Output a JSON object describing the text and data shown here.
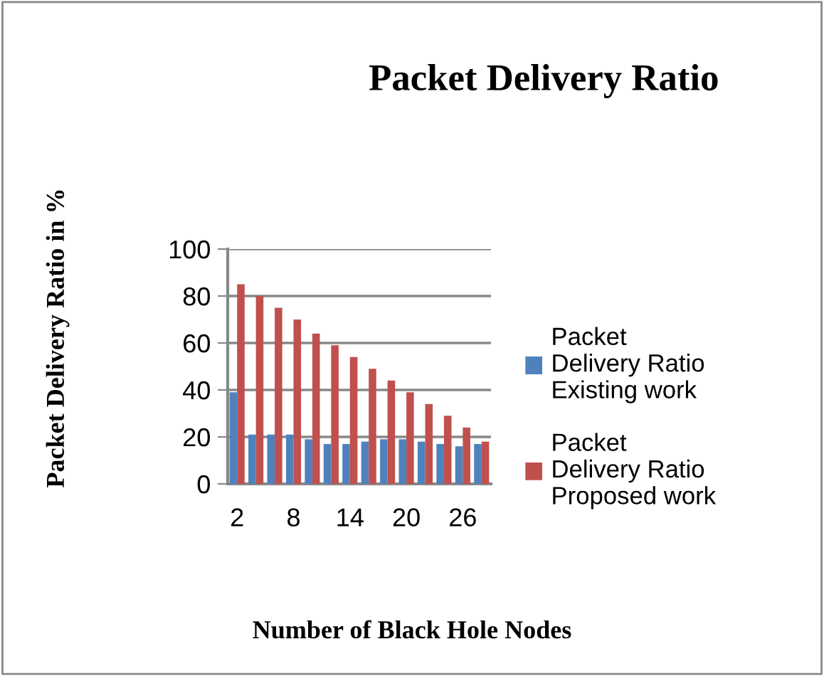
{
  "chart_data": {
    "type": "bar",
    "title": "Packet Delivery Ratio",
    "xlabel": "Number of Black Hole Nodes",
    "ylabel": "Packet Delivery Ratio in %",
    "categories": [
      "2",
      null,
      null,
      "8",
      null,
      null,
      "14",
      null,
      null,
      "20",
      null,
      null,
      "26",
      null
    ],
    "series": [
      {
        "name": "Packet Delivery Ratio Existing work",
        "color": "#4f81bd",
        "values": [
          39,
          21,
          21,
          21,
          19,
          17,
          17,
          18,
          19,
          19,
          18,
          17,
          16,
          17
        ]
      },
      {
        "name": "Packet Delivery Ratio Proposed work",
        "color": "#c0504d",
        "values": [
          85,
          80,
          75,
          70,
          64,
          59,
          54,
          49,
          44,
          39,
          34,
          29,
          24,
          18
        ]
      }
    ],
    "ylim": [
      0,
      100
    ],
    "yticks": [
      0,
      20,
      40,
      60,
      80,
      100
    ],
    "grid": "y",
    "legend": "right"
  }
}
